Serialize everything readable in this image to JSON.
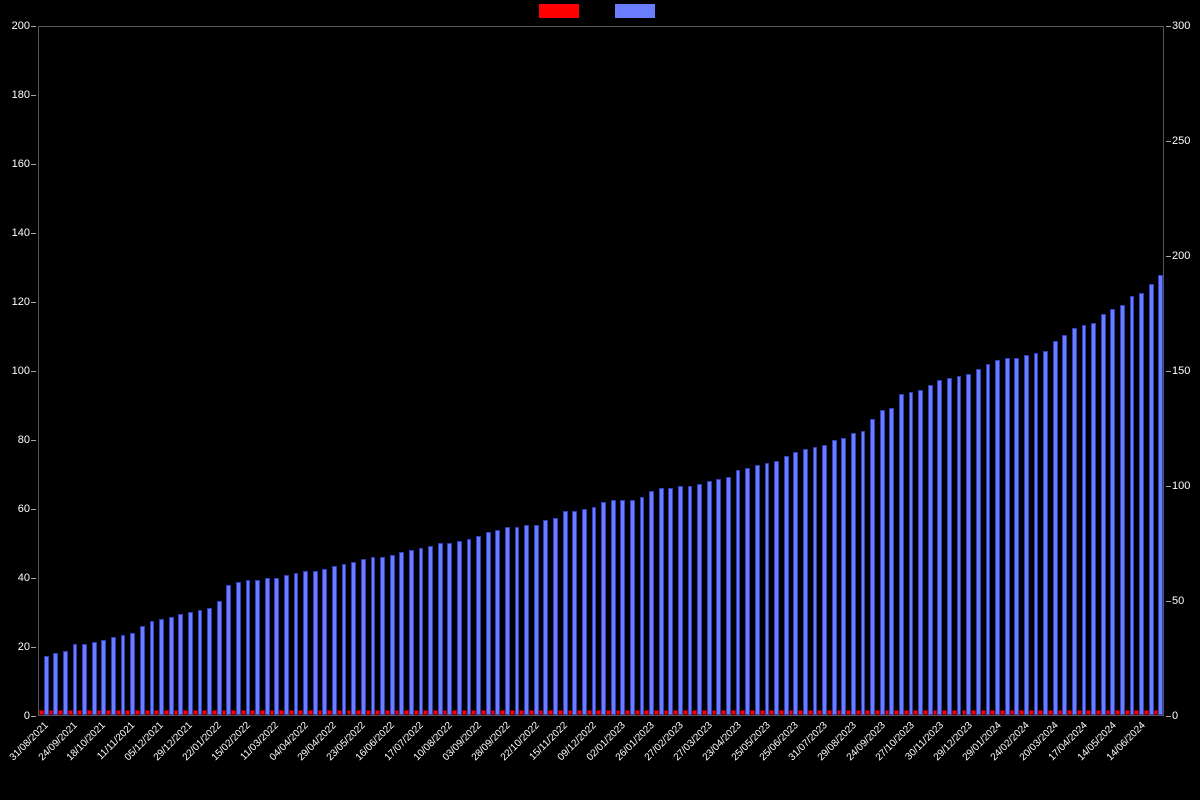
{
  "chart": {
    "type": "bar",
    "background_color": "#000000",
    "text_color": "#ffffff",
    "legend": {
      "series1": {
        "label": "",
        "color": "#ff0000"
      },
      "series2": {
        "label": "",
        "color": "#6a7dff"
      }
    },
    "left_axis": {
      "min": 0,
      "max": 200,
      "step": 20,
      "color": "#ffffff",
      "fontsize": 11
    },
    "right_axis": {
      "min": 0,
      "max": 300,
      "step": 50,
      "color": "#ffffff",
      "fontsize": 11
    },
    "x_labels": [
      "31/08/2021",
      "24/09/2021",
      "18/10/2021",
      "11/11/2021",
      "05/12/2021",
      "29/12/2021",
      "22/01/2022",
      "15/02/2022",
      "11/03/2022",
      "04/04/2022",
      "29/04/2022",
      "23/05/2022",
      "16/06/2022",
      "17/07/2022",
      "10/08/2022",
      "03/09/2022",
      "28/09/2022",
      "22/10/2022",
      "15/11/2022",
      "09/12/2022",
      "02/01/2023",
      "26/01/2023",
      "27/02/2023",
      "27/03/2023",
      "23/04/2023",
      "25/05/2023",
      "25/06/2023",
      "31/07/2023",
      "29/08/2023",
      "24/09/2023",
      "27/10/2023",
      "30/11/2023",
      "29/12/2023",
      "29/01/2024",
      "24/02/2024",
      "20/03/2024",
      "17/04/2024",
      "14/05/2024",
      "14/06/2024"
    ],
    "x_label_interval": 3,
    "series_red": [
      1,
      1,
      1,
      1,
      1,
      1,
      1,
      1,
      1,
      1,
      1,
      1,
      1,
      1,
      1,
      1,
      1,
      1,
      1,
      1,
      1,
      1,
      1,
      1,
      1,
      1,
      1,
      1,
      1,
      1,
      1,
      1,
      1,
      1,
      1,
      1,
      1,
      1,
      1,
      1,
      1,
      1,
      1,
      1,
      1,
      1,
      1,
      1,
      1,
      1,
      1,
      1,
      1,
      1,
      1,
      1,
      1,
      1,
      1,
      1,
      1,
      1,
      1,
      1,
      1,
      1,
      1,
      1,
      1,
      1,
      1,
      1,
      1,
      1,
      1,
      1,
      1,
      1,
      1,
      1,
      1,
      1,
      1,
      1,
      1,
      1,
      1,
      1,
      1,
      1,
      1,
      1,
      1,
      1,
      1,
      1,
      1,
      1,
      1,
      1,
      1,
      1,
      1,
      1,
      1,
      1,
      1,
      1,
      1,
      1,
      1,
      1,
      1,
      1,
      1,
      1,
      1
    ],
    "series_blue": [
      25,
      26,
      27,
      30,
      30,
      31,
      32,
      33,
      34,
      35,
      38,
      40,
      41,
      42,
      43,
      44,
      45,
      46,
      49,
      56,
      57,
      58,
      58,
      59,
      59,
      60,
      61,
      62,
      62,
      63,
      64,
      65,
      66,
      67,
      68,
      68,
      69,
      70,
      71,
      72,
      73,
      74,
      74,
      75,
      76,
      77,
      79,
      80,
      81,
      81,
      82,
      82,
      84,
      85,
      88,
      88,
      89,
      90,
      92,
      93,
      93,
      93,
      94,
      97,
      98,
      98,
      99,
      99,
      100,
      101,
      102,
      103,
      106,
      107,
      108,
      109,
      110,
      112,
      114,
      115,
      116,
      117,
      119,
      120,
      122,
      123,
      128,
      132,
      133,
      139,
      140,
      141,
      143,
      145,
      146,
      147,
      148,
      150,
      152,
      154,
      155,
      155,
      156,
      157,
      158,
      162,
      165,
      168,
      169,
      170,
      174,
      176,
      178,
      182,
      183,
      187,
      191
    ],
    "red_max": 200,
    "blue_max": 300,
    "bar_colors": {
      "red": "#ff0000",
      "blue": "#6a7dff"
    },
    "grid_color": "#555555"
  }
}
